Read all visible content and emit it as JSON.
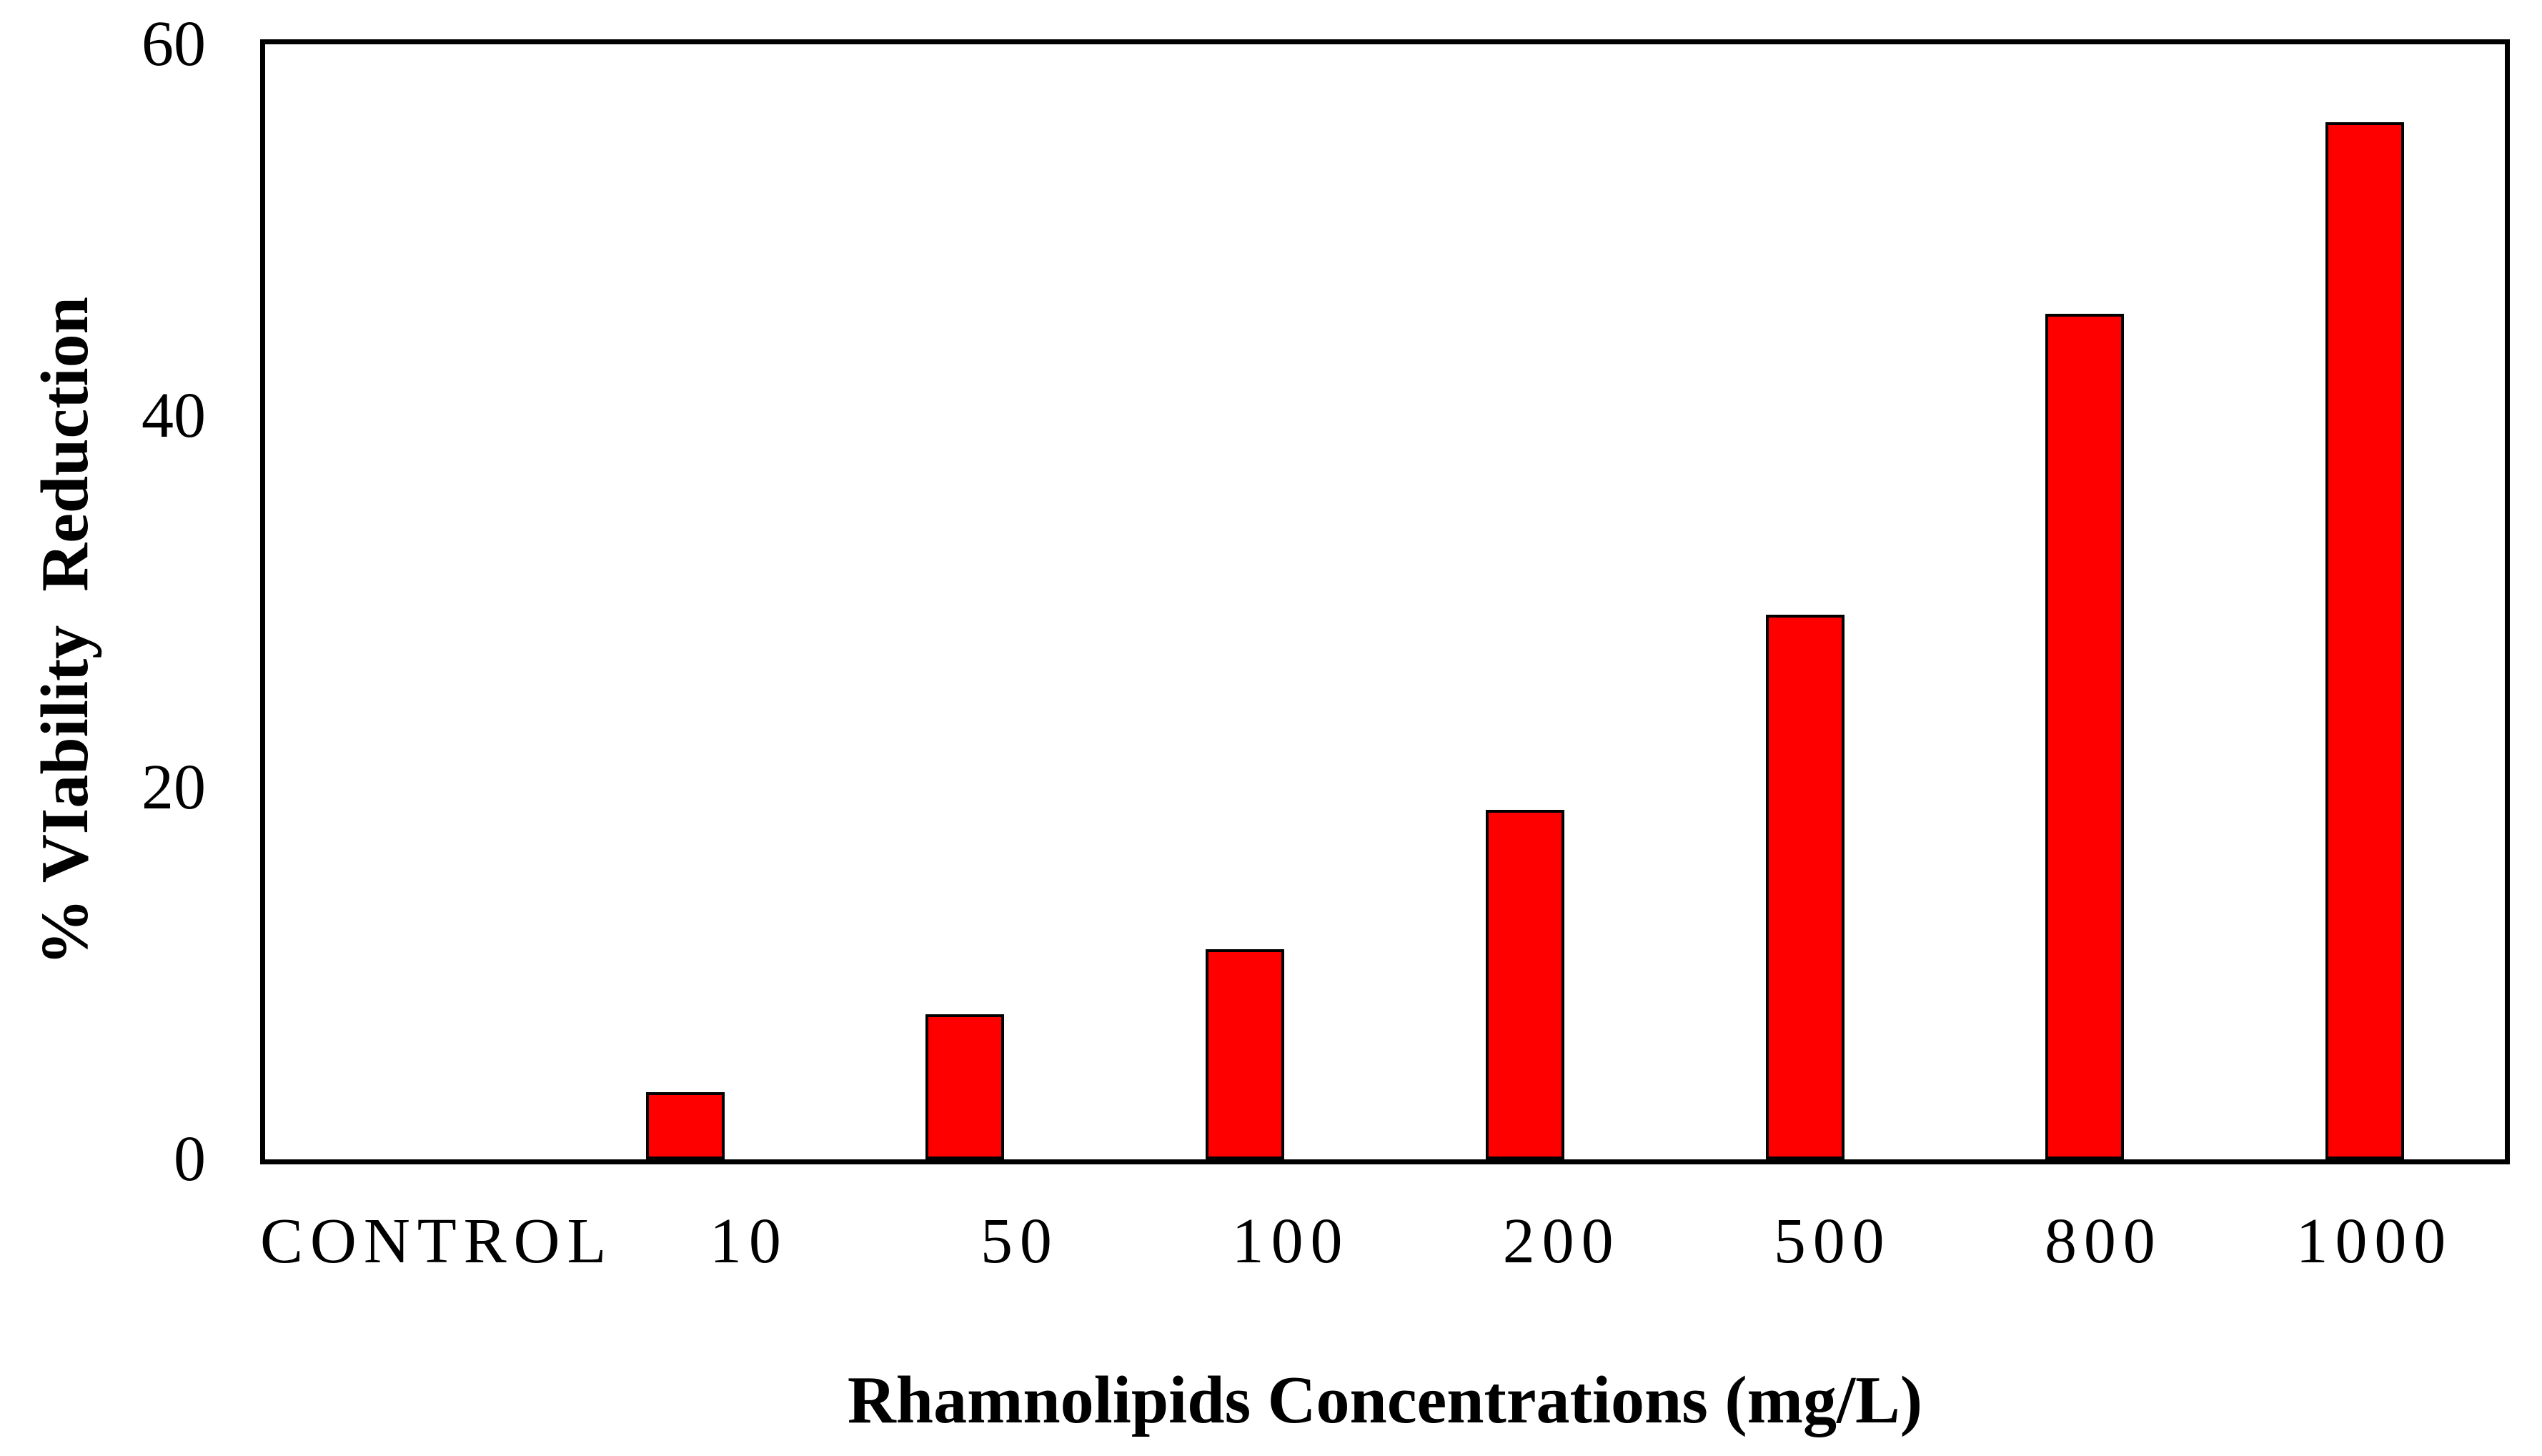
{
  "chart_data": {
    "type": "bar",
    "title": "",
    "xlabel": "Rhamnolipids Concentrations (mg/L)",
    "ylabel": "% VIability  Reduction",
    "categories": [
      "CONTROL",
      "10",
      "50",
      "100",
      "200",
      "500",
      "800",
      "1000"
    ],
    "values": [
      0,
      3.6,
      7.8,
      11.3,
      18.8,
      29.3,
      45.5,
      55.8
    ],
    "ylim": [
      0,
      60
    ],
    "yticks": [
      0,
      20,
      40,
      60
    ],
    "grid": false,
    "legend": "none",
    "bar_fill_color": "#FF0000",
    "bar_border_color": "#000000",
    "axis_color": "#000000",
    "background_color": "#FFFFFF"
  }
}
